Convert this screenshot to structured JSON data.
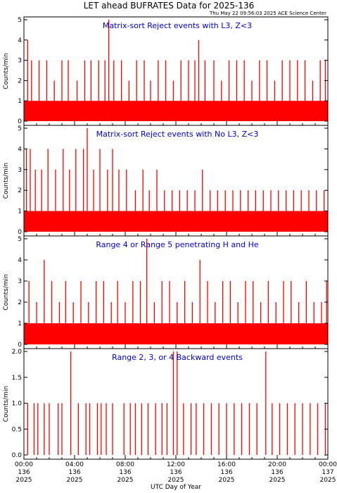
{
  "figure": {
    "title": "LET ahead BUFRATES Data for 2025-136",
    "timestamp": "Thu May 22 09:56:03 2025 ACE Science Center",
    "xlabel": "UTC Day of Year",
    "line_color": "#ff0000",
    "panel_title_color": "#0000cc"
  },
  "chart_data": [
    {
      "type": "bar",
      "title": "Matrix-sort Reject events with L3, Z<3",
      "ylabel": "Counts/min",
      "ylim": [
        0,
        5
      ],
      "yticks": [
        "0",
        "1",
        "2",
        "3",
        "4",
        "5"
      ],
      "x_unit": "hour_of_day",
      "xlim": [
        0,
        24
      ],
      "baseline_level": 1,
      "spikes": [
        {
          "x": 0.3,
          "y": 4
        },
        {
          "x": 0.6,
          "y": 3
        },
        {
          "x": 1.2,
          "y": 3
        },
        {
          "x": 1.8,
          "y": 3
        },
        {
          "x": 2.4,
          "y": 2
        },
        {
          "x": 3.0,
          "y": 3
        },
        {
          "x": 3.5,
          "y": 3
        },
        {
          "x": 4.2,
          "y": 2
        },
        {
          "x": 4.8,
          "y": 3
        },
        {
          "x": 5.3,
          "y": 3
        },
        {
          "x": 5.9,
          "y": 3
        },
        {
          "x": 6.4,
          "y": 3
        },
        {
          "x": 6.7,
          "y": 5
        },
        {
          "x": 7.1,
          "y": 3
        },
        {
          "x": 7.7,
          "y": 3
        },
        {
          "x": 8.3,
          "y": 2
        },
        {
          "x": 8.9,
          "y": 3
        },
        {
          "x": 9.5,
          "y": 3
        },
        {
          "x": 10.0,
          "y": 2
        },
        {
          "x": 10.6,
          "y": 3
        },
        {
          "x": 11.2,
          "y": 3
        },
        {
          "x": 11.8,
          "y": 2
        },
        {
          "x": 12.4,
          "y": 3
        },
        {
          "x": 13.0,
          "y": 3
        },
        {
          "x": 13.5,
          "y": 3
        },
        {
          "x": 13.8,
          "y": 4
        },
        {
          "x": 14.3,
          "y": 3
        },
        {
          "x": 15.0,
          "y": 3
        },
        {
          "x": 15.6,
          "y": 2
        },
        {
          "x": 16.2,
          "y": 3
        },
        {
          "x": 16.8,
          "y": 3
        },
        {
          "x": 17.4,
          "y": 3
        },
        {
          "x": 18.0,
          "y": 2
        },
        {
          "x": 18.6,
          "y": 3
        },
        {
          "x": 19.2,
          "y": 3
        },
        {
          "x": 19.8,
          "y": 2
        },
        {
          "x": 20.4,
          "y": 3
        },
        {
          "x": 21.0,
          "y": 3
        },
        {
          "x": 21.6,
          "y": 3
        },
        {
          "x": 22.2,
          "y": 3
        },
        {
          "x": 22.8,
          "y": 2
        },
        {
          "x": 23.4,
          "y": 3
        },
        {
          "x": 23.8,
          "y": 3
        }
      ]
    },
    {
      "type": "bar",
      "title": "Matrix-sort Reject events with No L3, Z<3",
      "ylabel": "Counts/min",
      "ylim": [
        0,
        5
      ],
      "yticks": [
        "0",
        "1",
        "2",
        "3",
        "4",
        "5"
      ],
      "x_unit": "hour_of_day",
      "xlim": [
        0,
        24
      ],
      "baseline_level": 1,
      "spikes": [
        {
          "x": 0.2,
          "y": 4
        },
        {
          "x": 0.5,
          "y": 4
        },
        {
          "x": 0.9,
          "y": 3
        },
        {
          "x": 1.4,
          "y": 3
        },
        {
          "x": 1.9,
          "y": 4
        },
        {
          "x": 2.5,
          "y": 3
        },
        {
          "x": 3.1,
          "y": 4
        },
        {
          "x": 3.6,
          "y": 3
        },
        {
          "x": 4.1,
          "y": 4
        },
        {
          "x": 4.7,
          "y": 4
        },
        {
          "x": 5.0,
          "y": 5
        },
        {
          "x": 5.5,
          "y": 3
        },
        {
          "x": 6.0,
          "y": 4
        },
        {
          "x": 6.6,
          "y": 3
        },
        {
          "x": 7.0,
          "y": 4
        },
        {
          "x": 7.5,
          "y": 3
        },
        {
          "x": 8.1,
          "y": 3
        },
        {
          "x": 8.8,
          "y": 2
        },
        {
          "x": 9.4,
          "y": 3
        },
        {
          "x": 9.9,
          "y": 2
        },
        {
          "x": 10.5,
          "y": 3
        },
        {
          "x": 11.1,
          "y": 2
        },
        {
          "x": 11.7,
          "y": 2
        },
        {
          "x": 12.3,
          "y": 2
        },
        {
          "x": 12.9,
          "y": 2
        },
        {
          "x": 13.5,
          "y": 2
        },
        {
          "x": 14.1,
          "y": 3
        },
        {
          "x": 14.7,
          "y": 2
        },
        {
          "x": 15.3,
          "y": 2
        },
        {
          "x": 15.9,
          "y": 2
        },
        {
          "x": 16.5,
          "y": 2
        },
        {
          "x": 17.1,
          "y": 2
        },
        {
          "x": 17.7,
          "y": 2
        },
        {
          "x": 18.3,
          "y": 2
        },
        {
          "x": 18.9,
          "y": 2
        },
        {
          "x": 19.5,
          "y": 2
        },
        {
          "x": 20.1,
          "y": 2
        },
        {
          "x": 20.7,
          "y": 2
        },
        {
          "x": 21.3,
          "y": 2
        },
        {
          "x": 21.9,
          "y": 2
        },
        {
          "x": 22.5,
          "y": 2
        },
        {
          "x": 23.1,
          "y": 2
        },
        {
          "x": 23.7,
          "y": 2
        }
      ]
    },
    {
      "type": "bar",
      "title": "Range 4 or Range 5 penetrating H and He",
      "ylabel": "Counts/min",
      "ylim": [
        0,
        5
      ],
      "yticks": [
        "0",
        "1",
        "2",
        "3",
        "4",
        "5"
      ],
      "x_unit": "hour_of_day",
      "xlim": [
        0,
        24
      ],
      "baseline_level": 1,
      "spikes": [
        {
          "x": 0.4,
          "y": 3
        },
        {
          "x": 1.0,
          "y": 2
        },
        {
          "x": 1.6,
          "y": 4
        },
        {
          "x": 2.2,
          "y": 3
        },
        {
          "x": 2.8,
          "y": 2
        },
        {
          "x": 3.3,
          "y": 3
        },
        {
          "x": 3.9,
          "y": 2
        },
        {
          "x": 4.5,
          "y": 3
        },
        {
          "x": 5.1,
          "y": 2
        },
        {
          "x": 5.7,
          "y": 3
        },
        {
          "x": 6.3,
          "y": 3
        },
        {
          "x": 6.9,
          "y": 2
        },
        {
          "x": 7.4,
          "y": 3
        },
        {
          "x": 8.0,
          "y": 2
        },
        {
          "x": 8.6,
          "y": 3
        },
        {
          "x": 9.2,
          "y": 3
        },
        {
          "x": 9.7,
          "y": 5
        },
        {
          "x": 10.3,
          "y": 2
        },
        {
          "x": 10.9,
          "y": 3
        },
        {
          "x": 11.5,
          "y": 3
        },
        {
          "x": 12.1,
          "y": 2
        },
        {
          "x": 12.7,
          "y": 3
        },
        {
          "x": 13.3,
          "y": 2
        },
        {
          "x": 13.9,
          "y": 4
        },
        {
          "x": 14.5,
          "y": 3
        },
        {
          "x": 15.1,
          "y": 2
        },
        {
          "x": 15.7,
          "y": 3
        },
        {
          "x": 16.3,
          "y": 3
        },
        {
          "x": 16.9,
          "y": 2
        },
        {
          "x": 17.5,
          "y": 3
        },
        {
          "x": 18.1,
          "y": 3
        },
        {
          "x": 18.7,
          "y": 2
        },
        {
          "x": 19.3,
          "y": 3
        },
        {
          "x": 19.9,
          "y": 2
        },
        {
          "x": 20.5,
          "y": 3
        },
        {
          "x": 21.1,
          "y": 3
        },
        {
          "x": 21.7,
          "y": 2
        },
        {
          "x": 22.3,
          "y": 3
        },
        {
          "x": 22.9,
          "y": 2
        },
        {
          "x": 23.5,
          "y": 2
        },
        {
          "x": 23.9,
          "y": 3
        }
      ]
    },
    {
      "type": "bar",
      "title": "Range 2, 3, or 4 Backward events",
      "ylabel": "Counts/min",
      "ylim": [
        0,
        2
      ],
      "yticks": [
        "0.0",
        "0.5",
        "1.0",
        "1.5",
        "2.0"
      ],
      "x_unit": "hour_of_day",
      "xlim": [
        0,
        24
      ],
      "baseline_level": 0,
      "spikes": [
        {
          "x": 0.3,
          "y": 1
        },
        {
          "x": 0.8,
          "y": 1
        },
        {
          "x": 1.1,
          "y": 1
        },
        {
          "x": 1.6,
          "y": 1
        },
        {
          "x": 2.0,
          "y": 1
        },
        {
          "x": 2.7,
          "y": 1
        },
        {
          "x": 3.0,
          "y": 1
        },
        {
          "x": 3.7,
          "y": 2
        },
        {
          "x": 4.3,
          "y": 1
        },
        {
          "x": 4.9,
          "y": 1
        },
        {
          "x": 5.2,
          "y": 1
        },
        {
          "x": 5.8,
          "y": 1
        },
        {
          "x": 6.1,
          "y": 1
        },
        {
          "x": 6.5,
          "y": 1
        },
        {
          "x": 7.0,
          "y": 1
        },
        {
          "x": 7.9,
          "y": 1
        },
        {
          "x": 8.4,
          "y": 1
        },
        {
          "x": 8.8,
          "y": 1
        },
        {
          "x": 9.3,
          "y": 1
        },
        {
          "x": 9.8,
          "y": 1
        },
        {
          "x": 10.4,
          "y": 1
        },
        {
          "x": 10.9,
          "y": 1
        },
        {
          "x": 11.3,
          "y": 1
        },
        {
          "x": 11.8,
          "y": 2
        },
        {
          "x": 12.1,
          "y": 2
        },
        {
          "x": 12.6,
          "y": 1
        },
        {
          "x": 13.2,
          "y": 1
        },
        {
          "x": 13.6,
          "y": 1
        },
        {
          "x": 14.2,
          "y": 1
        },
        {
          "x": 14.8,
          "y": 1
        },
        {
          "x": 15.4,
          "y": 1
        },
        {
          "x": 16.0,
          "y": 1
        },
        {
          "x": 16.6,
          "y": 1
        },
        {
          "x": 17.2,
          "y": 1
        },
        {
          "x": 17.8,
          "y": 1
        },
        {
          "x": 18.4,
          "y": 1
        },
        {
          "x": 19.1,
          "y": 2
        },
        {
          "x": 19.6,
          "y": 1
        },
        {
          "x": 20.2,
          "y": 1
        },
        {
          "x": 20.8,
          "y": 1
        },
        {
          "x": 21.4,
          "y": 1
        },
        {
          "x": 22.0,
          "y": 1
        },
        {
          "x": 22.6,
          "y": 1
        },
        {
          "x": 23.2,
          "y": 1
        },
        {
          "x": 23.8,
          "y": 1
        }
      ]
    }
  ],
  "x_axis": {
    "ticks": [
      {
        "x": 0,
        "time": "00:00",
        "doy": "136",
        "year": "2025"
      },
      {
        "x": 4,
        "time": "04:00",
        "doy": "136",
        "year": "2025"
      },
      {
        "x": 8,
        "time": "08:00",
        "doy": "136",
        "year": "2025"
      },
      {
        "x": 12,
        "time": "12:00",
        "doy": "136",
        "year": "2025"
      },
      {
        "x": 16,
        "time": "16:00",
        "doy": "136",
        "year": "2025"
      },
      {
        "x": 20,
        "time": "20:00",
        "doy": "136",
        "year": "2025"
      },
      {
        "x": 24,
        "time": "00:00",
        "doy": "137",
        "year": "2025"
      }
    ]
  }
}
